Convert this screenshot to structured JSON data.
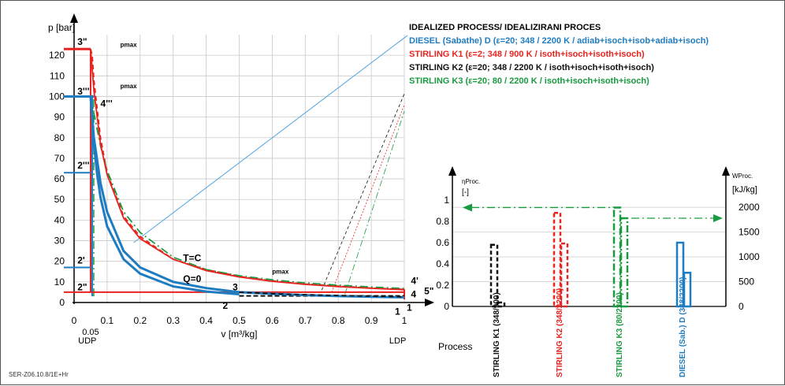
{
  "chart_data": [
    {
      "type": "line",
      "title": "",
      "xlabel": "v [m³/kg]",
      "ylabel": "p [bar]",
      "xlim": [
        0,
        1.0
      ],
      "ylim": [
        0,
        130
      ],
      "x_ticks": [
        "0",
        "0.1",
        "0.2",
        "0.3",
        "0.4",
        "0.5",
        "0.6",
        "0.7",
        "0.8",
        "0.9",
        "1"
      ],
      "y_ticks": [
        "0",
        "10",
        "20",
        "30",
        "40",
        "50",
        "60",
        "70",
        "80",
        "90",
        "100",
        "110",
        "120"
      ],
      "extra_x_ticks": {
        "left_value": "0.05",
        "left_label": "UDP",
        "right_label": "LDP"
      },
      "grid": true,
      "series": [
        {
          "name": "DIESEL (Sabathe) D",
          "color": "#1f7cc1",
          "style": "solid",
          "x": [
            0.05,
            0.06,
            0.08,
            0.1,
            0.15,
            0.2,
            0.3,
            0.4,
            0.5,
            0.6,
            0.7,
            0.8,
            0.9,
            1.0
          ],
          "y": [
            100,
            80,
            58,
            44,
            25,
            17,
            10,
            7,
            5,
            4.2,
            3.6,
            3.1,
            2.8,
            2.5
          ]
        },
        {
          "name": "STIRLING K1",
          "color": "#e8231f",
          "style": "dashed",
          "x": [
            0.05,
            0.055,
            0.06,
            0.08,
            0.1,
            0.15,
            0.2,
            0.3,
            0.4,
            0.5,
            0.6,
            0.7,
            0.8,
            0.9,
            1.0
          ],
          "y": [
            123,
            120,
            108,
            80,
            63,
            42,
            32,
            21,
            16,
            12.7,
            10.5,
            9,
            8,
            7,
            6.4
          ]
        },
        {
          "name": "STIRLING K2",
          "color": "#111111",
          "style": "dashed",
          "x": [
            0.5,
            0.6,
            0.7,
            0.8,
            0.9,
            1.0
          ],
          "y": [
            5,
            4.3,
            3.8,
            3.4,
            3.1,
            2.8
          ]
        },
        {
          "name": "STIRLING K3",
          "color": "#1a9a40",
          "style": "dashdot",
          "x": [
            0.05,
            0.06,
            0.08,
            0.1,
            0.15,
            0.2,
            0.3,
            0.4,
            0.5,
            0.6,
            0.7,
            0.8,
            0.9,
            1.0
          ],
          "y": [
            100,
            92,
            76,
            64,
            44,
            34,
            22,
            16,
            13,
            11,
            9.5,
            8.4,
            7.5,
            6.8
          ]
        },
        {
          "name": "T=C",
          "color": "#e8231f",
          "style": "solid",
          "x": [
            0.05,
            0.06,
            0.08,
            0.1,
            0.15,
            0.2,
            0.3,
            0.4,
            0.5,
            0.6,
            0.7,
            0.8,
            0.9,
            1.0
          ],
          "y": [
            123,
            103,
            77,
            62,
            41,
            31,
            21,
            15.5,
            12.4,
            10.3,
            8.8,
            7.7,
            6.9,
            6.2
          ]
        },
        {
          "name": "Q=0",
          "color": "#1f7cc1",
          "style": "solid",
          "x": [
            0.05,
            0.06,
            0.07,
            0.08,
            0.1,
            0.15,
            0.2,
            0.3,
            0.4,
            0.5
          ],
          "y": [
            100,
            77,
            62,
            51,
            37,
            21,
            14,
            7.8,
            5.3,
            4
          ]
        }
      ],
      "annotations": [
        "3\"",
        "pmax",
        "3'''",
        "pmax",
        "4'''",
        "2'''",
        "2'",
        "2\"",
        "T=C",
        "Q=0",
        "pmax",
        "3",
        "2",
        "4'",
        "4",
        "5\"",
        "1",
        "1"
      ]
    },
    {
      "type": "bar",
      "title": "",
      "categories": [
        "STIRLING K1 (348/900)",
        "STIRLING K2 (348/2200)",
        "STIRLING K3 (80/2200)",
        "DIESEL (Sab.) D (348/2200)"
      ],
      "series": [
        {
          "name": "ηProc. [-]",
          "values": [
            0.58,
            0.88,
            0.93,
            0.6
          ],
          "colors": [
            "#111111",
            "#e8231f",
            "#1a9a40",
            "#1f7cc1"
          ]
        },
        {
          "name": "WProc. [kJ/kg]",
          "values": [
            80,
            1270,
            1780,
            680
          ],
          "colors": [
            "#111111",
            "#e8231f",
            "#1a9a40",
            "#1f7cc1"
          ]
        }
      ],
      "left_axis": {
        "label_top": "ηProc.",
        "label_unit": "[-]",
        "ticks": [
          "0",
          "0.2",
          "0.4",
          "0.6",
          "0.8",
          "1"
        ],
        "ylim": [
          0,
          1.0
        ]
      },
      "right_axis": {
        "label_top": "WProc.",
        "label_unit": "[kJ/kg]",
        "ticks": [
          "0",
          "500",
          "1000",
          "1500",
          "2000"
        ],
        "ylim": [
          0,
          2400
        ]
      },
      "xlabel": "Process"
    }
  ],
  "legend": {
    "title": "IDEALIZED PROCESS/ IDEALIZIRANI PROCES",
    "entries": [
      {
        "text": "DIESEL (Sabathe) D (ε=20; 348 / 2200 K / adiab+isoch+isob+adiab+isoch)",
        "color": "#1f7cc1"
      },
      {
        "text": "STIRLING K1 (ε=2; 348 / 900 K / isoth+isoch+isoth+isoch)",
        "color": "#e8231f"
      },
      {
        "text": "STIRLING K2 (ε=20; 348 / 2200 K / isoth+isoch+isoth+isoch)",
        "color": "#111111"
      },
      {
        "text": "STIRLING K3 (ε=20; 80 / 2200 K / isoth+isoch+isoth+isoch)",
        "color": "#1a9a40"
      }
    ]
  },
  "footer_code": "SER-Z06.10.8/1E+Hr"
}
